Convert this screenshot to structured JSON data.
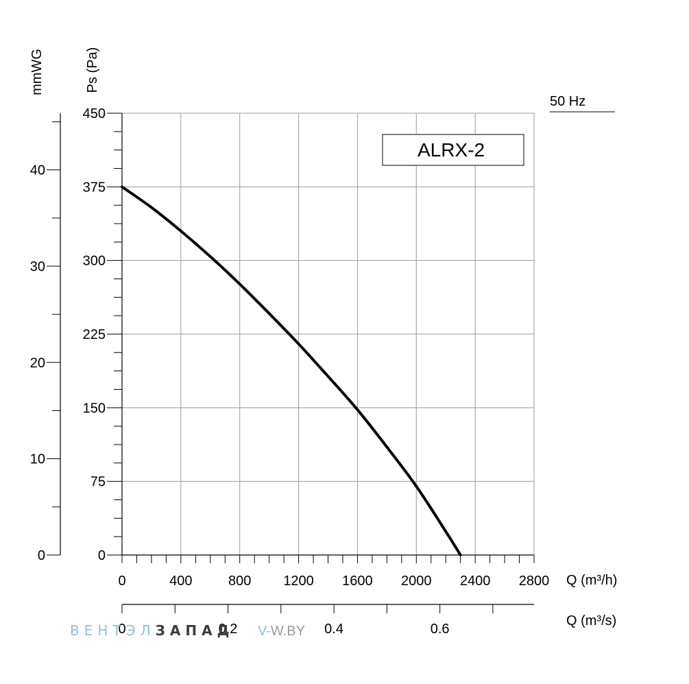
{
  "chart_data": {
    "type": "line",
    "model_label": "ALRX-2",
    "frequency_label": "50 Hz",
    "y_left_label": "Ps (Pa)",
    "y_outer_label": "mmWG",
    "x_label": "Q (m³/h)",
    "x2_label": "Q (m³/s)",
    "xlim": [
      0,
      2800
    ],
    "ylim": [
      0,
      450
    ],
    "x_ticks": [
      "0",
      "400",
      "800",
      "1200",
      "1600",
      "2000",
      "2400",
      "2800"
    ],
    "y_ticks": [
      "0",
      "75",
      "150",
      "225",
      "300",
      "375",
      "450"
    ],
    "mmwg_ticks": [
      "0",
      "10",
      "20",
      "30",
      "40"
    ],
    "x2_ticks": [
      "0",
      "0.2",
      "0.4",
      "0.6"
    ],
    "grid": true,
    "series": [
      {
        "x": [
          0,
          200,
          400,
          600,
          800,
          1000,
          1200,
          1400,
          1600,
          1800,
          2000,
          2200,
          2300
        ],
        "y": [
          375,
          354,
          330,
          304,
          276,
          246,
          215,
          182,
          148,
          110,
          70,
          24,
          0
        ],
        "color": "#000000"
      }
    ]
  },
  "watermark": {
    "part1": "ВЕНТ",
    "part2": "ЭЛ",
    "part3": "ЗАПАД",
    "site_prefix": "V-",
    "site_rest": "W.BY",
    "colors": {
      "light": "#8cc0e3",
      "dark": "#3d3d3d",
      "grey": "#9a9a9a"
    }
  }
}
